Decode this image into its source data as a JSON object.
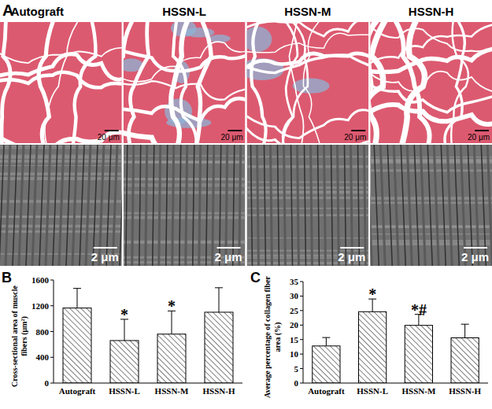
{
  "panel_a": {
    "label": "A",
    "columns": [
      "Autograft",
      "HSSN-L",
      "HSSN-M",
      "HSSN-H"
    ],
    "scale_bar_light": "20 μm",
    "scale_bar_em": "2 μm"
  },
  "chart_data": [
    {
      "type": "bar",
      "label": "B",
      "y_label": "Cross-sectional area of  muscle\nfibers (μm²)",
      "categories": [
        "Autograft",
        "HSSN-L",
        "HSSN-M",
        "HSSN-H"
      ],
      "values": [
        1165,
        660,
        760,
        1100
      ],
      "errors": [
        305,
        330,
        360,
        380
      ],
      "color": "#000000",
      "ylim": [
        0,
        1600
      ],
      "yticks": [
        0,
        400,
        800,
        1200,
        1600
      ],
      "annotations": [
        {
          "category": "HSSN-L",
          "text": "*"
        },
        {
          "category": "HSSN-M",
          "text": "*"
        }
      ]
    },
    {
      "type": "bar",
      "label": "C",
      "y_label": "Average percentage of collagen fiber\narea (%)",
      "categories": [
        "Autograft",
        "HSSN-L",
        "HSSN-M",
        "HSSN-H"
      ],
      "values": [
        12.8,
        24.6,
        19.9,
        15.6
      ],
      "errors": [
        2.9,
        4.4,
        3.8,
        4.7
      ],
      "color": "#000000",
      "ylim": [
        0,
        35
      ],
      "yticks": [
        0,
        5,
        10,
        15,
        20,
        25,
        30,
        35
      ],
      "annotations": [
        {
          "category": "HSSN-L",
          "text": "*"
        },
        {
          "category": "HSSN-M",
          "text": "*#"
        }
      ]
    }
  ]
}
